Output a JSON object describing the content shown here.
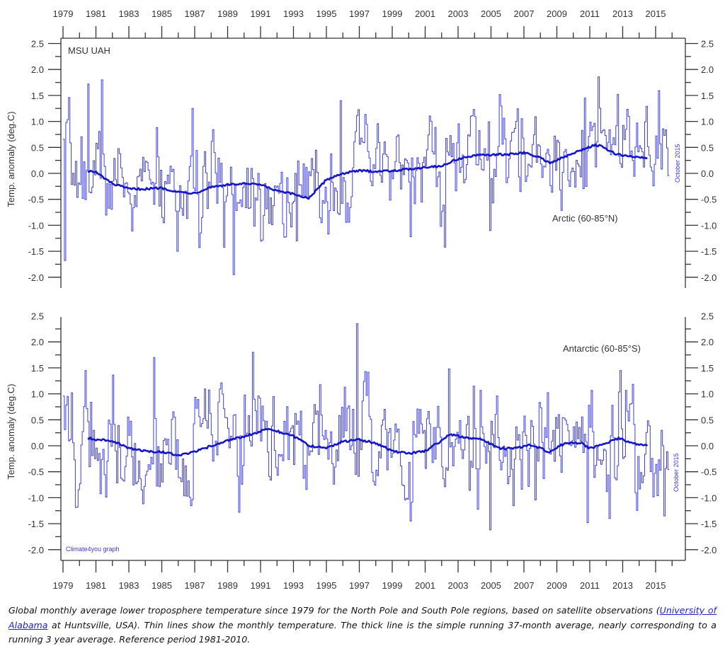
{
  "chart_data": [
    {
      "type": "line",
      "panel": "top",
      "title": "MSU UAH",
      "annotation": "Arctic (60-85°N)",
      "end_note": "October 2015",
      "ylabel": "Temp. anomaly (deg.C)",
      "xlabel": "",
      "xlim": [
        1979.0,
        2016.4
      ],
      "ylim": [
        -2.2,
        2.5
      ],
      "xticks_major": [
        1979,
        1981,
        1983,
        1985,
        1987,
        1989,
        1991,
        1993,
        1995,
        1997,
        1999,
        2001,
        2003,
        2005,
        2007,
        2009,
        2011,
        2013,
        2015
      ],
      "yticks": [
        "2.5",
        "2.0",
        "1.5",
        "1.0",
        "0.5",
        "0.0",
        "-0.5",
        "-1.0",
        "-1.5",
        "-2.0"
      ],
      "ytick_values": [
        2.5,
        2.0,
        1.5,
        1.0,
        0.5,
        0.0,
        -0.5,
        -1.0,
        -1.5,
        -2.0
      ],
      "series": [
        {
          "name": "Monthly temperature anomaly (thin)",
          "style": "step",
          "start": 1979.0,
          "end": 2015.79,
          "seed": 7,
          "noise_sd": 0.42,
          "extremes": [
            [
              1979.1,
              -1.68
            ],
            [
              1980.5,
              1.72
            ],
            [
              1981.3,
              1.8
            ],
            [
              1989.3,
              -1.95
            ],
            [
              1995.8,
              1.4
            ],
            [
              2002.2,
              -1.42
            ],
            [
              2004.9,
              -1.1
            ],
            [
              2012.7,
              1.52
            ],
            [
              2010.7,
              1.45
            ],
            [
              1993.2,
              -1.3
            ],
            [
              1985.9,
              -1.5
            ]
          ]
        },
        {
          "name": "37-month running average (thick)",
          "style": "line",
          "points": [
            [
              1980.5,
              0.05
            ],
            [
              1981.0,
              0.02
            ],
            [
              1982.0,
              -0.2
            ],
            [
              1983.0,
              -0.3
            ],
            [
              1984.0,
              -0.3
            ],
            [
              1985.0,
              -0.28
            ],
            [
              1986.0,
              -0.36
            ],
            [
              1987.0,
              -0.38
            ],
            [
              1988.0,
              -0.26
            ],
            [
              1989.0,
              -0.22
            ],
            [
              1990.0,
              -0.2
            ],
            [
              1991.0,
              -0.22
            ],
            [
              1992.0,
              -0.34
            ],
            [
              1993.0,
              -0.4
            ],
            [
              1993.9,
              -0.48
            ],
            [
              1994.5,
              -0.3
            ],
            [
              1995.0,
              -0.12
            ],
            [
              1996.0,
              0.0
            ],
            [
              1997.0,
              0.05
            ],
            [
              1998.0,
              0.04
            ],
            [
              1999.0,
              0.05
            ],
            [
              2000.0,
              0.08
            ],
            [
              2001.0,
              0.12
            ],
            [
              2002.0,
              0.14
            ],
            [
              2003.0,
              0.28
            ],
            [
              2004.0,
              0.34
            ],
            [
              2005.0,
              0.36
            ],
            [
              2006.0,
              0.36
            ],
            [
              2007.0,
              0.4
            ],
            [
              2008.0,
              0.3
            ],
            [
              2008.6,
              0.2
            ],
            [
              2009.5,
              0.32
            ],
            [
              2010.5,
              0.45
            ],
            [
              2011.3,
              0.55
            ],
            [
              2011.7,
              0.52
            ],
            [
              2012.5,
              0.38
            ],
            [
              2013.5,
              0.32
            ],
            [
              2014.5,
              0.3
            ]
          ]
        }
      ]
    },
    {
      "type": "line",
      "panel": "bottom",
      "annotation": "Antarctic (60-85°S)",
      "end_note": "October 2015",
      "source_label": "Climate4you graph",
      "ylabel": "Temp. anomaly (deg.C)",
      "xlabel": "",
      "xlim": [
        1979.0,
        2016.4
      ],
      "ylim": [
        -2.2,
        2.5
      ],
      "xticks_major": [
        1979,
        1981,
        1983,
        1985,
        1987,
        1989,
        1991,
        1993,
        1995,
        1997,
        1999,
        2001,
        2003,
        2005,
        2007,
        2009,
        2011,
        2013,
        2015
      ],
      "yticks": [
        "2.5",
        "2.0",
        "1.5",
        "1.0",
        "0.5",
        "0.0",
        "-0.5",
        "-1.0",
        "-1.5",
        "-2.0"
      ],
      "ytick_values": [
        2.5,
        2.0,
        1.5,
        1.0,
        0.5,
        0.0,
        -0.5,
        -1.0,
        -1.5,
        -2.0
      ],
      "series": [
        {
          "name": "Monthly temperature anomaly (thin)",
          "style": "step",
          "start": 1979.0,
          "end": 2015.79,
          "seed": 19,
          "noise_sd": 0.48,
          "extremes": [
            [
              1980.3,
              1.45
            ],
            [
              1984.5,
              1.7
            ],
            [
              1990.5,
              1.8
            ],
            [
              1996.8,
              2.35
            ],
            [
              1989.7,
              -1.28
            ],
            [
              2002.4,
              1.48
            ],
            [
              2004.9,
              -1.62
            ],
            [
              2000.1,
              -1.45
            ],
            [
              2010.8,
              -1.48
            ],
            [
              2012.8,
              1.45
            ],
            [
              2012.2,
              -1.4
            ],
            [
              2015.5,
              -1.35
            ],
            [
              1979.8,
              -1.18
            ]
          ]
        },
        {
          "name": "37-month running average (thick)",
          "style": "line",
          "points": [
            [
              1980.5,
              0.15
            ],
            [
              1981.0,
              0.12
            ],
            [
              1982.0,
              0.1
            ],
            [
              1983.0,
              -0.05
            ],
            [
              1984.0,
              -0.1
            ],
            [
              1985.0,
              -0.12
            ],
            [
              1986.0,
              -0.18
            ],
            [
              1987.0,
              -0.12
            ],
            [
              1988.0,
              0.0
            ],
            [
              1989.0,
              0.1
            ],
            [
              1990.0,
              0.18
            ],
            [
              1991.0,
              0.28
            ],
            [
              1991.5,
              0.34
            ],
            [
              1992.0,
              0.28
            ],
            [
              1993.0,
              0.18
            ],
            [
              1994.0,
              0.0
            ],
            [
              1995.0,
              -0.05
            ],
            [
              1996.0,
              0.08
            ],
            [
              1997.0,
              0.12
            ],
            [
              1998.0,
              0.05
            ],
            [
              1999.0,
              -0.1
            ],
            [
              2000.0,
              -0.15
            ],
            [
              2001.0,
              -0.1
            ],
            [
              2002.0,
              0.1
            ],
            [
              2002.5,
              0.22
            ],
            [
              2003.5,
              0.15
            ],
            [
              2004.5,
              0.12
            ],
            [
              2005.5,
              -0.05
            ],
            [
              2006.5,
              -0.05
            ],
            [
              2007.5,
              0.02
            ],
            [
              2008.5,
              -0.12
            ],
            [
              2009.5,
              0.05
            ],
            [
              2010.5,
              0.05
            ],
            [
              2011.0,
              -0.05
            ],
            [
              2012.0,
              0.05
            ],
            [
              2012.8,
              0.15
            ],
            [
              2013.5,
              0.05
            ],
            [
              2014.5,
              0.0
            ]
          ]
        }
      ]
    }
  ],
  "caption": {
    "before_link": "Global monthly average lower troposphere temperature since 1979 for the North Pole and South Pole regions, based on satellite observations (",
    "link_text": "University of Alabama",
    "after_link": " at Huntsville, USA). Thin lines show the monthly temperature. The thick line is the simple running 37-month average, nearly corresponding to a running 3 year average. Reference period 1981-2010."
  },
  "colors": {
    "series": "#2a2ad8",
    "smooth": "#1414c8",
    "axis": "#333333",
    "link": "#2222cc"
  }
}
